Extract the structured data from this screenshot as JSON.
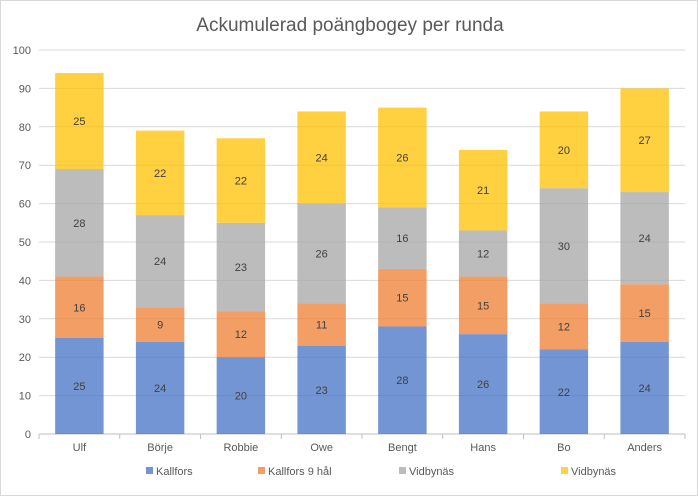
{
  "chart_data": {
    "type": "bar",
    "stacked": true,
    "title": "Ackumulerad poängbogey per runda",
    "xlabel": "",
    "ylabel": "",
    "ylim": [
      0,
      100
    ],
    "yticks": [
      0,
      10,
      20,
      30,
      40,
      50,
      60,
      70,
      80,
      90,
      100
    ],
    "grid": true,
    "legend_position": "bottom",
    "categories": [
      "Ulf",
      "Börje",
      "Robbie",
      "Owe",
      "Bengt",
      "Hans",
      "Bo",
      "Anders"
    ],
    "series": [
      {
        "name": "Kallfors",
        "color": "#4472c4",
        "values": [
          25,
          24,
          20,
          23,
          28,
          26,
          22,
          24
        ]
      },
      {
        "name": "Kallfors 9 hål",
        "color": "#ed7d31",
        "values": [
          16,
          9,
          12,
          11,
          15,
          15,
          12,
          15
        ]
      },
      {
        "name": "Vidbynäs",
        "color": "#a5a5a5",
        "values": [
          28,
          24,
          23,
          26,
          16,
          12,
          30,
          24
        ]
      },
      {
        "name": "Vidbynäs",
        "color": "#ffc000",
        "values": [
          25,
          22,
          22,
          24,
          26,
          21,
          20,
          27
        ]
      }
    ]
  }
}
